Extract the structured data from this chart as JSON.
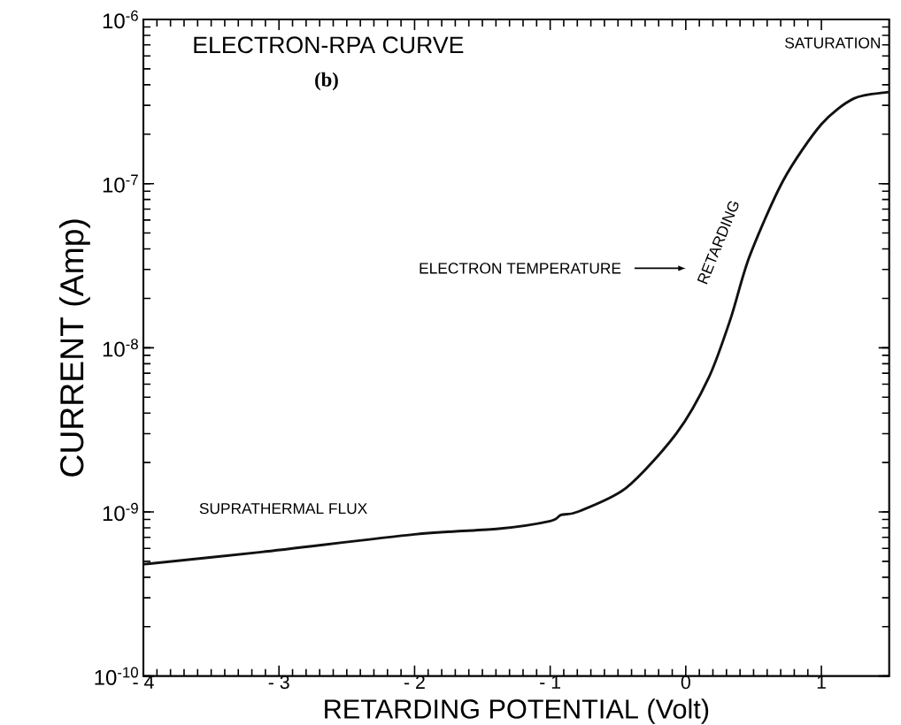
{
  "chart_data": {
    "type": "line",
    "title": "ELECTRON-RPA CURVE",
    "xlabel": "RETARDING POTENTIAL (Volt)",
    "ylabel": "CURRENT (Amp)",
    "log": "y",
    "xlim": [
      -4,
      1.5
    ],
    "ylim": [
      1e-10,
      1e-06
    ],
    "xticks": [
      {
        "value": -4,
        "label": "- 4"
      },
      {
        "value": -3,
        "label": "- 3"
      },
      {
        "value": -2,
        "label": "- 2"
      },
      {
        "value": -1,
        "label": "- 1"
      },
      0,
      1
    ],
    "yticks": [
      {
        "value": 1e-10,
        "label": "10$^{-10}$"
      },
      {
        "value": 1e-09,
        "label": "10$^{-9}$"
      },
      {
        "value": 1e-08,
        "label": "10$^{-8}$"
      },
      {
        "value": 1e-07,
        "label": "10$^{-7}$"
      },
      {
        "value": 1e-06,
        "label": "10$^{-6}$"
      }
    ],
    "grid": false,
    "marker": "none",
    "line_style": "solid",
    "annotations": [
      "(b)",
      "SATURATION",
      "ELECTRON TEMPERATURE",
      "RETARDING",
      "SUPRATHERMAL FLUX"
    ],
    "series": [
      {
        "color": "#111111",
        "x": [
          -4,
          -3.13,
          -2.0,
          -1.38,
          -1.0,
          -0.92,
          -0.8,
          -0.44,
          -0.07,
          0.17,
          0.33,
          0.47,
          0.72,
          1.0,
          1.24,
          1.48,
          1.5
        ],
        "values": [
          4.8e-10,
          5.7e-10,
          7.3e-10,
          7.9e-10,
          8.8e-10,
          9.6e-10,
          1e-09,
          1.4e-09,
          3e-09,
          6.6e-09,
          1.5e-08,
          3.6e-08,
          1.05e-07,
          2.3e-07,
          3.3e-07,
          3.6e-07,
          3.6e-07
        ]
      }
    ]
  }
}
